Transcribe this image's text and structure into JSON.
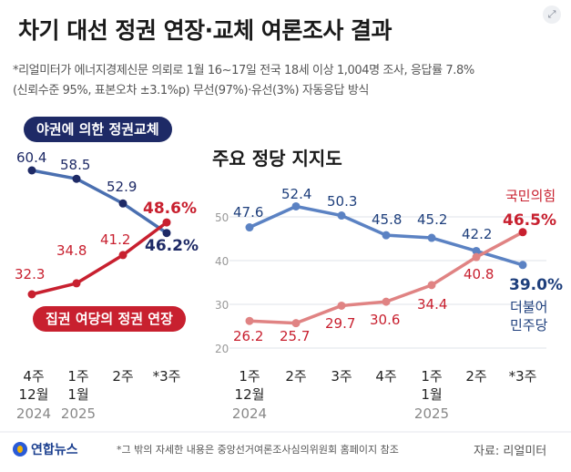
{
  "title": "차기 대선 정권 연장·교체 여론조사 결과",
  "note_line1": "*리얼미터가 에너지경제신문 의뢰로 1월 16~17일 전국 18세 이상 1,004명 조사, 응답률 7.8%",
  "note_line2": "(신뢰수준 95%, 표본오차 ±3.1%p) 무선(97%)·유선(3%) 자동응답 방식",
  "footer_logo": "연합뉴스",
  "footer_note": "*그 밖의 자세한 내용은 중앙선거여론조사심의위원회 홈페이지 참조",
  "footer_source": "자료: 리얼미터",
  "colors": {
    "opposition_line": "#4a6fb0",
    "opposition_dark": "#1e2a66",
    "ruling_line": "#c8202f",
    "ruling_light": "#e08383",
    "dpk_line": "#5b82c3"
  },
  "chart_data": [
    {
      "type": "line",
      "categories": [
        {
          "week": "4주",
          "month": "12월",
          "year": "2024"
        },
        {
          "week": "1주",
          "month": "1월",
          "year": "2025"
        },
        {
          "week": "2주",
          "month": "",
          "year": ""
        },
        {
          "week": "*3주",
          "month": "",
          "year": ""
        }
      ],
      "series": [
        {
          "name": "야권에 의한 정권교체",
          "values": [
            60.4,
            58.5,
            52.9,
            46.2
          ],
          "labels": [
            "60.4",
            "58.5",
            "52.9",
            "46.2%"
          ]
        },
        {
          "name": "집권 여당의 정권 연장",
          "values": [
            32.3,
            34.8,
            41.2,
            48.6
          ],
          "labels": [
            "32.3",
            "34.8",
            "41.2",
            "48.6%"
          ]
        }
      ]
    },
    {
      "type": "line",
      "title": "주요 정당 지지도",
      "categories": [
        {
          "week": "1주",
          "month": "12월",
          "year": "2024"
        },
        {
          "week": "2주",
          "month": "",
          "year": ""
        },
        {
          "week": "3주",
          "month": "",
          "year": ""
        },
        {
          "week": "4주",
          "month": "",
          "year": ""
        },
        {
          "week": "1주",
          "month": "1월",
          "year": "2025"
        },
        {
          "week": "2주",
          "month": "",
          "year": ""
        },
        {
          "week": "*3주",
          "month": "",
          "year": ""
        }
      ],
      "y_ticks": [
        "50",
        "40",
        "30",
        "20"
      ],
      "ylim": [
        20,
        55
      ],
      "grid": true,
      "series": [
        {
          "name": "더불어민주당",
          "name_line1": "더불어",
          "name_line2": "민주당",
          "values": [
            47.6,
            52.4,
            50.3,
            45.8,
            45.2,
            42.2,
            39.0
          ],
          "labels": [
            "47.6",
            "52.4",
            "50.3",
            "45.8",
            "45.2",
            "42.2",
            "39.0%"
          ]
        },
        {
          "name": "국민의힘",
          "values": [
            26.2,
            25.7,
            29.7,
            30.6,
            34.4,
            40.8,
            46.5
          ],
          "labels": [
            "26.2",
            "25.7",
            "29.7",
            "30.6",
            "34.4",
            "40.8",
            "46.5%"
          ]
        }
      ]
    }
  ]
}
